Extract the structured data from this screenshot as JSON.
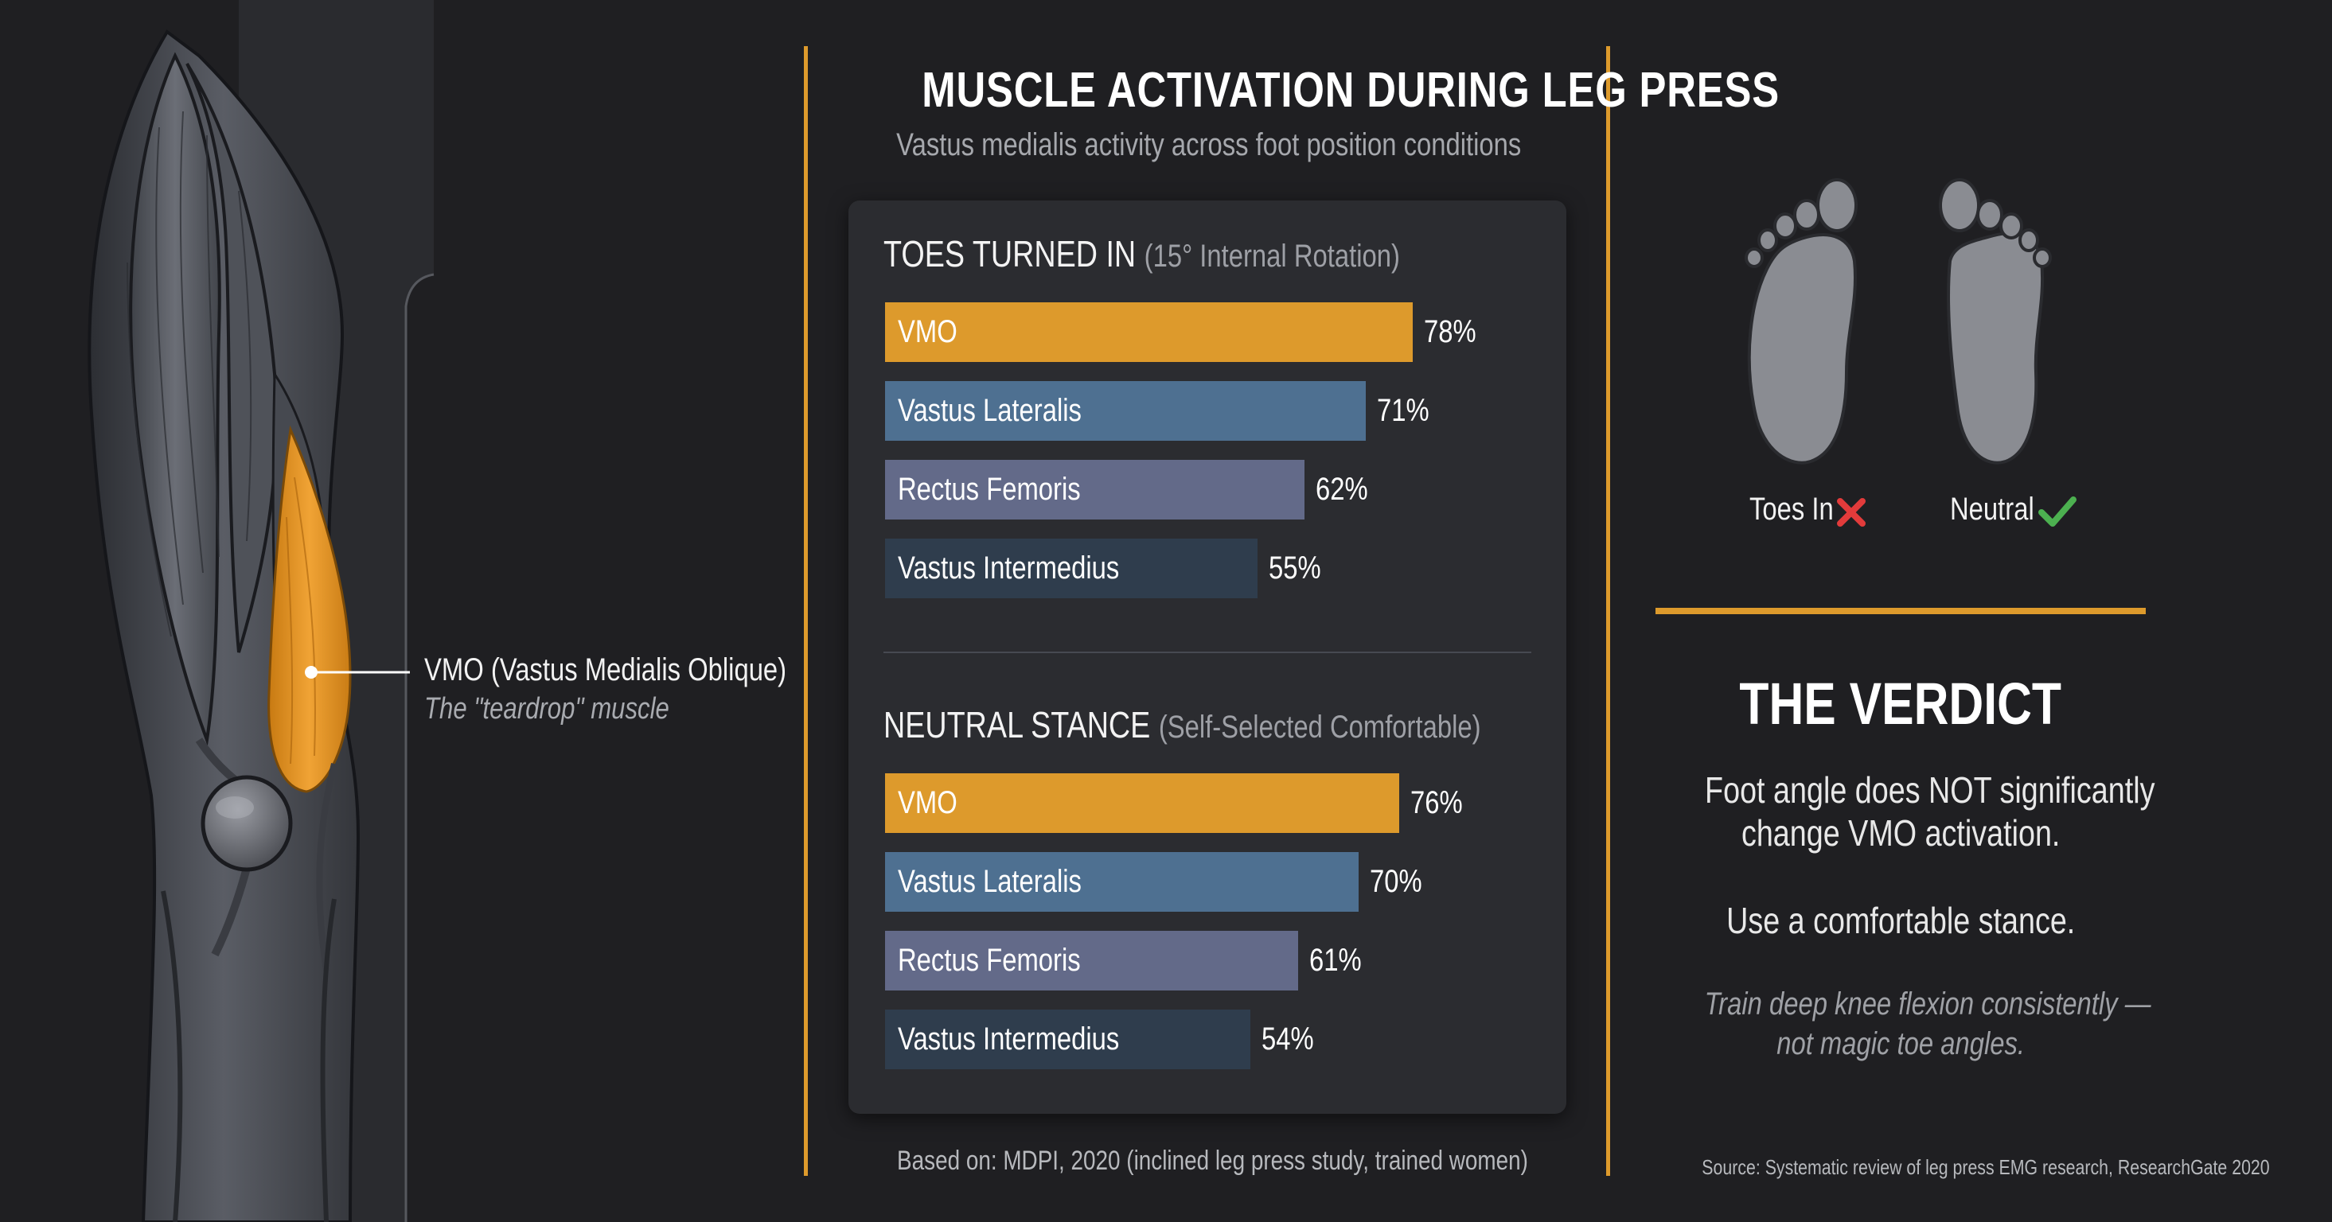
{
  "header": {
    "title": "MUSCLE ACTIVATION DURING LEG PRESS",
    "subtitle": "Vastus medialis activity across foot position conditions"
  },
  "callout": {
    "title": "VMO (Vastus Medialis Oblique)",
    "subtitle": "The \"teardrop\" muscle"
  },
  "chart_data": [
    {
      "type": "bar",
      "orientation": "horizontal",
      "title": "TOES TURNED IN",
      "title_qualifier": "(15° Internal Rotation)",
      "categories": [
        "VMO",
        "Vastus Lateralis",
        "Rectus Femoris",
        "Vastus Intermedius"
      ],
      "values": [
        78,
        71,
        62,
        55
      ],
      "value_labels": [
        "78%",
        "71%",
        "62%",
        "55%"
      ],
      "unit": "%",
      "colors": [
        "#dd9a2c",
        "#4e7091",
        "#636a89",
        "#2f3d4d"
      ]
    },
    {
      "type": "bar",
      "orientation": "horizontal",
      "title": "NEUTRAL STANCE",
      "title_qualifier": "(Self-Selected Comfortable)",
      "categories": [
        "VMO",
        "Vastus Lateralis",
        "Rectus Femoris",
        "Vastus Intermedius"
      ],
      "values": [
        76,
        70,
        61,
        54
      ],
      "value_labels": [
        "76%",
        "70%",
        "61%",
        "54%"
      ],
      "unit": "%",
      "colors": [
        "#dd9a2c",
        "#4e7091",
        "#636a89",
        "#2f3d4d"
      ]
    }
  ],
  "sources": {
    "chart": "Based on: MDPI, 2020 (inclined leg press study, trained women)",
    "verdict": "Source: Systematic review of leg press EMG research, ResearchGate 2020"
  },
  "feet": [
    {
      "label": "Toes In",
      "icon": "x-icon",
      "color": "#e23b3b"
    },
    {
      "label": "Neutral",
      "icon": "check-icon",
      "color": "#4cb050"
    }
  ],
  "verdict": {
    "title": "THE VERDICT",
    "line1": "Foot angle does NOT significantly",
    "line2": "change VMO activation.",
    "line3": "Use a comfortable stance.",
    "note1": "Train deep knee flexion consistently —",
    "note2": "not magic toe angles."
  },
  "colors": {
    "accent": "#dd9a2c",
    "background": "#1f1f22",
    "panel": "#2b2c30"
  }
}
